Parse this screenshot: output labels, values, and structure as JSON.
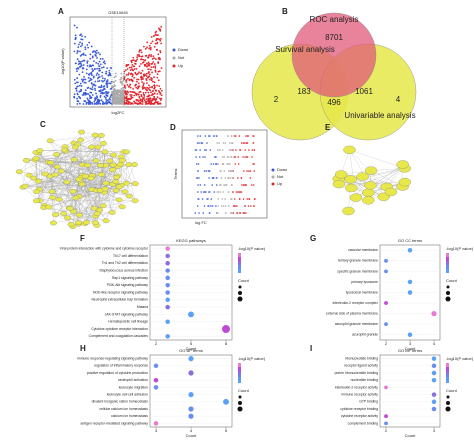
{
  "panels": {
    "A": {
      "label": "A",
      "title": "GSE10645",
      "xlabel": "log2FC",
      "ylabel": "-log10(P value)",
      "legend": [
        "Down",
        "Not",
        "Up"
      ]
    },
    "B": {
      "label": "B",
      "sets": [
        "ROC analysis",
        "Survival analysis",
        "Univariable analysis"
      ],
      "counts": [
        "8701",
        "183",
        "496",
        "1061",
        "2",
        "4"
      ]
    },
    "C": {
      "label": "C"
    },
    "D": {
      "label": "D",
      "xlabel": "log FC",
      "ylabel": "Terms",
      "legend": [
        "Down",
        "Not",
        "Up"
      ]
    },
    "E": {
      "label": "E"
    },
    "F": {
      "label": "F",
      "title": "KEGG pathways",
      "terms": [
        "Viral protein interaction with cytokine and cytokine receptor",
        "Th17 cell differentiation",
        "Th1 and Th2 cell differentiation",
        "Staphylococcus aureus infection",
        "Rap1 signaling pathway",
        "PI3K-Akt signaling pathway",
        "NOD-like receptor signaling pathway",
        "Neutrophil extracellular trap formation",
        "Malaria",
        "JAK-STAT signaling pathway",
        "Hematopoietic cell lineage",
        "Cytokine-cytokine receptor interaction",
        "Complement and coagulation cascades"
      ],
      "counts": [
        3,
        3,
        3,
        3,
        3,
        3,
        3,
        3,
        3,
        5,
        3,
        8,
        3
      ],
      "colors": [
        "#e87ad1",
        "#8a6ee0",
        "#8a6ee0",
        "#6a8ef0",
        "#6a8ef0",
        "#6a8ef0",
        "#6a8ef0",
        "#5aa0f5",
        "#8a6ee0",
        "#5aa0f5",
        "#5aa0f5",
        "#c04ad8",
        "#5aa0f5"
      ],
      "xlim": [
        2,
        8
      ],
      "xticks": [
        2,
        5,
        8
      ],
      "xlabel": "Count",
      "colorbar_title": "-log10(P value)",
      "size_title": "Count"
    },
    "G": {
      "label": "G",
      "title": "GO CC terms",
      "terms": [
        "vacuolar membrane",
        "tertiary granule membrane",
        "specific granule membrane",
        "primary lysosome",
        "lysosomal membrane",
        "interleukin-2 receptor complex",
        "external side of plasma membrane",
        "azurophil granule membrane",
        "azurophil granule"
      ],
      "counts": [
        3,
        2,
        2,
        3,
        3,
        2,
        4,
        2,
        3
      ],
      "colors": [
        "#5aa0f5",
        "#6a8ef0",
        "#6a8ef0",
        "#5aa0f5",
        "#5aa0f5",
        "#c04ad8",
        "#e87ad1",
        "#6a8ef0",
        "#5aa0f5"
      ],
      "xlim": [
        2,
        4
      ],
      "xticks": [
        2,
        3,
        4
      ],
      "xlabel": "Count",
      "colorbar_title": "-log10(P value)",
      "size_title": "Count"
    },
    "H": {
      "label": "H",
      "title": "GO BP terms",
      "terms": [
        "immune response-regulating signaling pathway",
        "regulation of inflammatory response",
        "positive regulation of cytokine production",
        "neutrophil activation",
        "leukocyte migration",
        "leukocyte cell-cell adhesion",
        "divalent inorganic cation homeostasis",
        "cellular calcium ion homeostasis",
        "calcium ion homeostasis",
        "antigen receptor-mediated signaling pathway"
      ],
      "counts": [
        4,
        3,
        4,
        3,
        3,
        4,
        5,
        4,
        4,
        3
      ],
      "colors": [
        "#5aa0f5",
        "#6a8ef0",
        "#8a6ee0",
        "#c04ad8",
        "#6a8ef0",
        "#5aa0f5",
        "#5aa0f5",
        "#6a8ef0",
        "#6a8ef0",
        "#e87ad1"
      ],
      "xlim": [
        3,
        5
      ],
      "xticks": [
        3,
        4,
        5
      ],
      "xlabel": "Count",
      "colorbar_title": "-log10(P value)",
      "size_title": "Count"
    },
    "I": {
      "label": "I",
      "title": "GO MF terms",
      "terms": [
        "ribonucleotide binding",
        "receptor ligand activity",
        "purine ribonucleotide binding",
        "nucleotide binding",
        "interleukin-2 receptor activity",
        "immune receptor activity",
        "GTP binding",
        "cytokine receptor binding",
        "cytokine receptor activity",
        "complement binding"
      ],
      "counts": [
        3,
        3,
        3,
        3,
        2,
        3,
        3,
        3,
        2,
        2
      ],
      "colors": [
        "#5aa0f5",
        "#6a8ef0",
        "#5aa0f5",
        "#5aa0f5",
        "#e87ad1",
        "#8a6ee0",
        "#5aa0f5",
        "#6a8ef0",
        "#c04ad8",
        "#6a8ef0"
      ],
      "xlim": [
        2,
        3
      ],
      "xticks": [
        2,
        3
      ],
      "xlabel": "Count",
      "colorbar_title": "-log10(P value)",
      "size_title": "Count"
    }
  }
}
